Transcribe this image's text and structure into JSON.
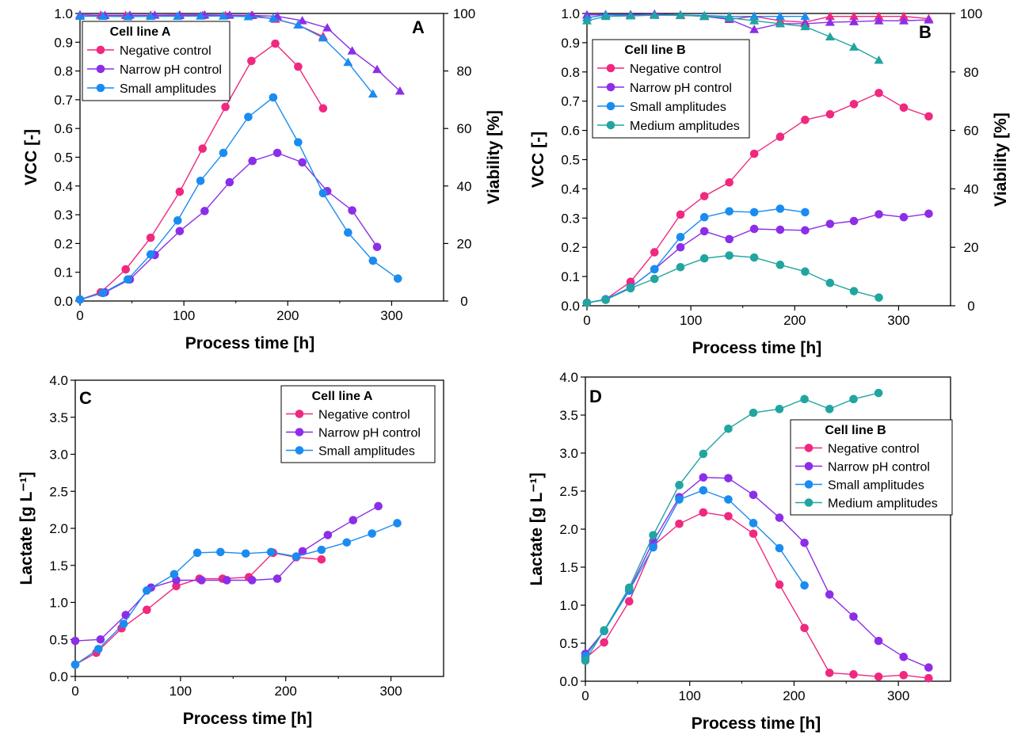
{
  "colors": {
    "Negative control": "#f0287f",
    "Narrow pH control": "#8c2ee8",
    "Small amplitudes": "#1a8cf0",
    "Medium amplitudes": "#21a5a0"
  },
  "chart_data": [
    {
      "panel": "A",
      "type": "line",
      "xlabel": "Process time [h]",
      "ylabel": "VCC [-]",
      "y2label": "Viability [%]",
      "xlim": [
        0,
        350
      ],
      "ylim": [
        0,
        1.0
      ],
      "y2lim": [
        0,
        100
      ],
      "xticks": [
        "0",
        "100",
        "200",
        "300"
      ],
      "yticks": [
        "0.0",
        "0.1",
        "0.2",
        "0.3",
        "0.4",
        "0.5",
        "0.6",
        "0.7",
        "0.8",
        "0.9",
        "1.0"
      ],
      "y2ticks": [
        "0",
        "20",
        "40",
        "60",
        "80",
        "100"
      ],
      "legend_title": "Cell line A",
      "legend_position": "top-left",
      "series": [
        {
          "name": "Negative control",
          "marker": "circle",
          "axis": "left",
          "x": [
            0,
            20,
            44,
            68,
            96,
            118,
            140,
            165,
            188,
            210,
            234
          ],
          "y": [
            0.005,
            0.03,
            0.11,
            0.22,
            0.38,
            0.53,
            0.675,
            0.835,
            0.895,
            0.815,
            0.67
          ]
        },
        {
          "name": "Narrow pH control",
          "marker": "circle",
          "axis": "left",
          "x": [
            0,
            24,
            48,
            72,
            96,
            120,
            144,
            166,
            190,
            214,
            238,
            262,
            286
          ],
          "y": [
            0.005,
            0.03,
            0.075,
            0.16,
            0.243,
            0.313,
            0.413,
            0.487,
            0.515,
            0.482,
            0.382,
            0.315,
            0.188
          ]
        },
        {
          "name": "Small amplitudes",
          "marker": "circle",
          "axis": "left",
          "x": [
            0,
            22,
            46,
            68,
            94,
            116,
            138,
            162,
            186,
            210,
            234,
            258,
            282,
            306
          ],
          "y": [
            0.005,
            0.028,
            0.075,
            0.162,
            0.28,
            0.418,
            0.515,
            0.64,
            0.708,
            0.552,
            0.375,
            0.238,
            0.14,
            0.078
          ]
        },
        {
          "name": "Negative control",
          "marker": "triangle",
          "axis": "right",
          "legend": false,
          "x": [
            0,
            20,
            44,
            68,
            96,
            118,
            140,
            165,
            188,
            210,
            234
          ],
          "y": [
            99.5,
            99.4,
            99.3,
            99.4,
            99.3,
            99.3,
            99.3,
            99.3,
            98.0,
            96.0,
            92.0
          ]
        },
        {
          "name": "Narrow pH control",
          "marker": "triangle",
          "axis": "right",
          "legend": false,
          "x": [
            0,
            24,
            48,
            72,
            96,
            120,
            144,
            166,
            190,
            214,
            238,
            262,
            286,
            308
          ],
          "y": [
            99.5,
            99.3,
            99.4,
            99.4,
            99.5,
            99.5,
            99.4,
            99.3,
            99.0,
            97.5,
            95.0,
            87.0,
            80.5,
            73.0
          ]
        },
        {
          "name": "Small amplitudes",
          "marker": "triangle",
          "axis": "right",
          "legend": false,
          "x": [
            0,
            22,
            46,
            68,
            94,
            116,
            138,
            162,
            186,
            210,
            234,
            258,
            282
          ],
          "y": [
            99.0,
            99.0,
            98.9,
            99.0,
            99.0,
            99.1,
            99.1,
            98.9,
            98.3,
            96.0,
            91.5,
            83.0,
            72.0
          ]
        }
      ]
    },
    {
      "panel": "B",
      "type": "line",
      "xlabel": "Process time [h]",
      "ylabel": "VCC [-]",
      "y2label": "Viability [%]",
      "xlim": [
        0,
        350
      ],
      "ylim": [
        0,
        1.0
      ],
      "y2lim": [
        0,
        100
      ],
      "xticks": [
        "0",
        "100",
        "200",
        "300"
      ],
      "yticks": [
        "0.0",
        "0.1",
        "0.2",
        "0.3",
        "0.4",
        "0.5",
        "0.6",
        "0.7",
        "0.8",
        "0.9",
        "1.0"
      ],
      "y2ticks": [
        "0",
        "20",
        "40",
        "60",
        "80",
        "100"
      ],
      "legend_title": "Cell line B",
      "legend_position": "top-left",
      "series": [
        {
          "name": "Negative control",
          "marker": "circle",
          "axis": "left",
          "x": [
            0,
            18,
            42,
            65,
            90,
            113,
            137,
            161,
            186,
            210,
            234,
            257,
            281,
            305,
            329
          ],
          "y": [
            0.01,
            0.022,
            0.082,
            0.183,
            0.312,
            0.375,
            0.422,
            0.52,
            0.578,
            0.636,
            0.655,
            0.69,
            0.728,
            0.678,
            0.648
          ]
        },
        {
          "name": "Narrow pH control",
          "marker": "circle",
          "axis": "left",
          "x": [
            0,
            18,
            42,
            65,
            90,
            113,
            137,
            161,
            186,
            210,
            234,
            257,
            281,
            305,
            329
          ],
          "y": [
            0.01,
            0.022,
            0.063,
            0.125,
            0.2,
            0.255,
            0.228,
            0.263,
            0.26,
            0.258,
            0.28,
            0.29,
            0.313,
            0.303,
            0.315
          ]
        },
        {
          "name": "Small amplitudes",
          "marker": "circle",
          "axis": "left",
          "x": [
            0,
            18,
            42,
            65,
            90,
            113,
            137,
            161,
            186,
            210
          ],
          "y": [
            0.01,
            0.022,
            0.063,
            0.125,
            0.235,
            0.303,
            0.323,
            0.32,
            0.332,
            0.32
          ]
        },
        {
          "name": "Medium amplitudes",
          "marker": "circle",
          "axis": "left",
          "x": [
            0,
            18,
            42,
            65,
            90,
            113,
            137,
            161,
            186,
            210,
            234,
            257,
            281
          ],
          "y": [
            0.01,
            0.02,
            0.06,
            0.092,
            0.132,
            0.162,
            0.172,
            0.165,
            0.14,
            0.117,
            0.078,
            0.05,
            0.028
          ]
        },
        {
          "name": "Negative control",
          "marker": "triangle",
          "axis": "right",
          "legend": false,
          "x": [
            0,
            18,
            42,
            65,
            90,
            113,
            137,
            161,
            186,
            210,
            234,
            257,
            281,
            305,
            329
          ],
          "y": [
            99.5,
            99.6,
            99.5,
            99.6,
            99.3,
            99.2,
            98.0,
            99.0,
            97.5,
            97.0,
            99.0,
            99.0,
            99.0,
            99.0,
            98.2
          ]
        },
        {
          "name": "Narrow pH control",
          "marker": "triangle",
          "axis": "right",
          "legend": false,
          "x": [
            0,
            18,
            42,
            65,
            90,
            113,
            137,
            161,
            186,
            210,
            234,
            257,
            281,
            305,
            329
          ],
          "y": [
            99.5,
            99.6,
            99.6,
            99.8,
            99.5,
            99.0,
            98.0,
            94.5,
            96.5,
            96.5,
            97.0,
            97.2,
            97.5,
            97.5,
            97.8
          ]
        },
        {
          "name": "Small amplitudes",
          "marker": "triangle",
          "axis": "right",
          "legend": false,
          "x": [
            0,
            18,
            42,
            65,
            90,
            113,
            137,
            161,
            186,
            210
          ],
          "y": [
            98.5,
            99.5,
            99.3,
            99.4,
            99.5,
            99.3,
            99.0,
            99.0,
            99.0,
            99.0
          ]
        },
        {
          "name": "Medium amplitudes",
          "marker": "triangle",
          "axis": "right",
          "legend": false,
          "x": [
            0,
            18,
            42,
            65,
            90,
            113,
            137,
            161,
            186,
            210,
            234,
            257,
            281
          ],
          "y": [
            97.5,
            99.0,
            99.2,
            99.4,
            99.4,
            99.0,
            98.5,
            97.5,
            96.5,
            95.5,
            92.0,
            88.5,
            84.0
          ]
        }
      ]
    },
    {
      "panel": "C",
      "type": "line",
      "xlabel": "Process time [h]",
      "ylabel": "Lactate [g L⁻¹]",
      "xlim": [
        0,
        350
      ],
      "ylim": [
        0,
        4.0
      ],
      "xticks": [
        "0",
        "100",
        "200",
        "300"
      ],
      "yticks": [
        "0.0",
        "0.5",
        "1.0",
        "1.5",
        "2.0",
        "2.5",
        "3.0",
        "3.5",
        "4.0"
      ],
      "legend_title": "Cell line A",
      "legend_position": "top-right",
      "series": [
        {
          "name": "Negative control",
          "marker": "circle",
          "x": [
            0,
            20,
            44,
            68,
            96,
            118,
            140,
            165,
            188,
            210,
            234
          ],
          "y": [
            0.16,
            0.32,
            0.65,
            0.9,
            1.22,
            1.32,
            1.32,
            1.34,
            1.67,
            1.61,
            1.58
          ]
        },
        {
          "name": "Narrow pH control",
          "marker": "circle",
          "x": [
            0,
            24,
            48,
            72,
            96,
            120,
            144,
            168,
            192,
            216,
            240,
            264,
            288
          ],
          "y": [
            0.48,
            0.5,
            0.83,
            1.2,
            1.3,
            1.3,
            1.3,
            1.3,
            1.32,
            1.69,
            1.91,
            2.11,
            2.3
          ]
        },
        {
          "name": "Small amplitudes",
          "marker": "circle",
          "x": [
            0,
            22,
            46,
            68,
            94,
            116,
            138,
            162,
            186,
            210,
            234,
            258,
            282,
            306
          ],
          "y": [
            0.16,
            0.37,
            0.71,
            1.16,
            1.38,
            1.67,
            1.68,
            1.66,
            1.68,
            1.62,
            1.71,
            1.81,
            1.93,
            2.07
          ]
        }
      ]
    },
    {
      "panel": "D",
      "type": "line",
      "xlabel": "Process time [h]",
      "ylabel": "Lactate [g L⁻¹]",
      "xlim": [
        0,
        350
      ],
      "ylim": [
        0,
        4.0
      ],
      "xticks": [
        "0",
        "100",
        "200",
        "300"
      ],
      "yticks": [
        "0.0",
        "0.5",
        "1.0",
        "1.5",
        "2.0",
        "2.5",
        "3.0",
        "3.5",
        "4.0"
      ],
      "legend_title": "Cell line B",
      "legend_position": "right",
      "series": [
        {
          "name": "Negative control",
          "marker": "circle",
          "x": [
            0,
            18,
            42,
            65,
            90,
            113,
            137,
            161,
            186,
            210,
            234,
            257,
            281,
            305,
            329
          ],
          "y": [
            0.3,
            0.51,
            1.05,
            1.78,
            2.07,
            2.22,
            2.17,
            1.94,
            1.27,
            0.7,
            0.11,
            0.09,
            0.06,
            0.08,
            0.04
          ]
        },
        {
          "name": "Narrow pH control",
          "marker": "circle",
          "x": [
            0,
            18,
            42,
            65,
            90,
            113,
            137,
            161,
            186,
            210,
            234,
            257,
            281,
            305,
            329
          ],
          "y": [
            0.36,
            0.66,
            1.2,
            1.84,
            2.42,
            2.68,
            2.67,
            2.45,
            2.15,
            1.82,
            1.14,
            0.85,
            0.53,
            0.32,
            0.18
          ]
        },
        {
          "name": "Small amplitudes",
          "marker": "circle",
          "x": [
            0,
            18,
            42,
            65,
            90,
            113,
            137,
            161,
            186,
            210
          ],
          "y": [
            0.33,
            0.66,
            1.19,
            1.76,
            2.39,
            2.51,
            2.39,
            2.08,
            1.75,
            1.26
          ]
        },
        {
          "name": "Medium amplitudes",
          "marker": "circle",
          "x": [
            0,
            18,
            42,
            65,
            90,
            113,
            137,
            161,
            186,
            210,
            234,
            257,
            281
          ],
          "y": [
            0.27,
            0.67,
            1.23,
            1.92,
            2.58,
            2.99,
            3.32,
            3.53,
            3.58,
            3.71,
            3.58,
            3.71,
            3.79
          ]
        }
      ]
    }
  ]
}
